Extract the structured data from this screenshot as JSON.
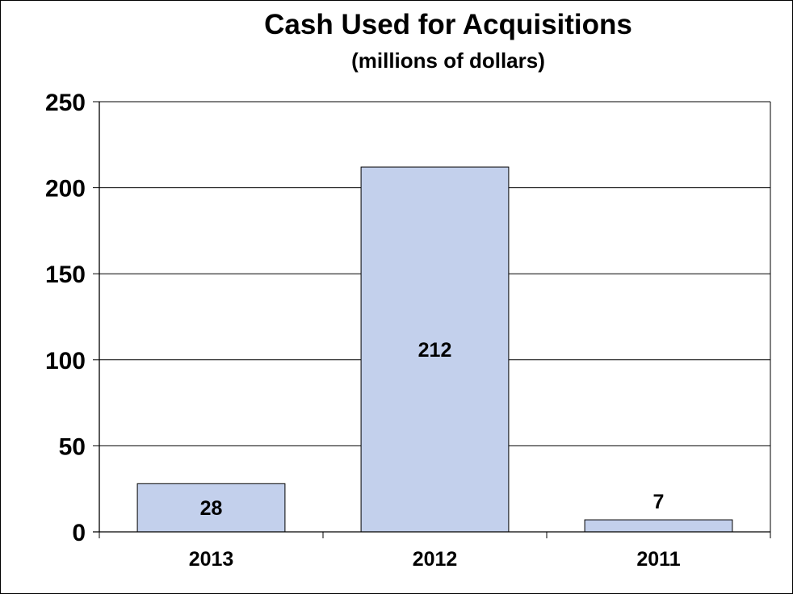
{
  "chart_data": {
    "type": "bar",
    "title": "Cash Used for Acquisitions",
    "subtitle": "(millions of dollars)",
    "xlabel": "",
    "ylabel": "",
    "categories": [
      "2013",
      "2012",
      "2011"
    ],
    "values": [
      28,
      212,
      7
    ],
    "data_labels": [
      "28",
      "212",
      "7"
    ],
    "ylim": [
      0,
      250
    ],
    "yticks": [
      0,
      50,
      100,
      150,
      200,
      250
    ],
    "grid": true,
    "legend": "none",
    "colors": {
      "bar": "#c3d0ec",
      "bar_border": "#000000",
      "grid": "#000000"
    }
  }
}
